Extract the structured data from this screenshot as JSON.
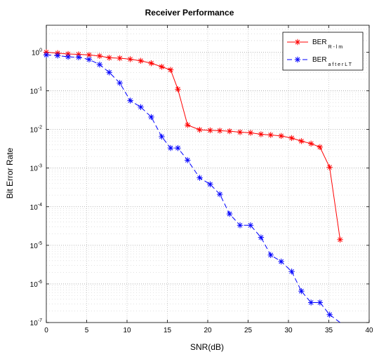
{
  "chart_data": {
    "type": "line",
    "title": "Receiver Performance",
    "xlabel": "SNR(dB)",
    "ylabel": "Bit Error Rate",
    "xlim": [
      0,
      40
    ],
    "ylim": [
      1e-07,
      5
    ],
    "yscale": "log",
    "grid": true,
    "legend_position": "top-right",
    "x_ticks": [
      0,
      5,
      10,
      15,
      20,
      25,
      30,
      35,
      40
    ],
    "y_ticks": [
      {
        "value": 1.0,
        "base": "10",
        "exp": "0"
      },
      {
        "value": 0.1,
        "base": "10",
        "exp": "-1"
      },
      {
        "value": 0.01,
        "base": "10",
        "exp": "-2"
      },
      {
        "value": 0.001,
        "base": "10",
        "exp": "-3"
      },
      {
        "value": 0.0001,
        "base": "10",
        "exp": "-4"
      },
      {
        "value": 1e-05,
        "base": "10",
        "exp": "-5"
      },
      {
        "value": 1e-06,
        "base": "10",
        "exp": "-6"
      },
      {
        "value": 1e-07,
        "base": "10",
        "exp": "-7"
      }
    ],
    "series": [
      {
        "name": "BER",
        "name_sub": "R - l m",
        "color": "#ff0000",
        "line_style": "solid",
        "marker": "asterisk",
        "x": [
          0,
          1.4,
          2.7,
          4.0,
          5.3,
          6.6,
          7.8,
          9.1,
          10.4,
          11.7,
          13.0,
          14.3,
          15.4,
          16.3,
          17.5,
          19.0,
          20.3,
          21.5,
          22.7,
          24.0,
          25.3,
          26.6,
          27.8,
          29.1,
          30.4,
          31.6,
          32.8,
          33.9,
          35.1,
          36.4
        ],
        "y": [
          1.0,
          0.95,
          0.9,
          0.88,
          0.85,
          0.8,
          0.72,
          0.7,
          0.66,
          0.6,
          0.52,
          0.42,
          0.35,
          0.11,
          0.013,
          0.0098,
          0.0095,
          0.0093,
          0.009,
          0.0085,
          0.0082,
          0.0075,
          0.0072,
          0.0068,
          0.006,
          0.005,
          0.0043,
          0.0035,
          0.00105,
          1.4e-05
        ]
      },
      {
        "name": "BER",
        "name_sub": "a f t e r  L T",
        "color": "#0000ff",
        "line_style": "dashed",
        "marker": "asterisk",
        "x": [
          0,
          1.4,
          2.7,
          4.0,
          5.3,
          6.6,
          7.8,
          9.1,
          10.4,
          11.7,
          13.0,
          14.3,
          15.4,
          16.3,
          17.5,
          19.0,
          20.3,
          21.5,
          22.7,
          24.0,
          25.3,
          26.6,
          27.8,
          29.1,
          30.4,
          31.6,
          32.8,
          33.9,
          35.1,
          36.4
        ],
        "y": [
          0.85,
          0.82,
          0.76,
          0.74,
          0.65,
          0.48,
          0.3,
          0.16,
          0.056,
          0.038,
          0.021,
          0.0065,
          0.0033,
          0.0033,
          0.0016,
          0.00056,
          0.00038,
          0.00021,
          6.5e-05,
          3.3e-05,
          3.3e-05,
          1.6e-05,
          5.6e-06,
          3.8e-06,
          2.1e-06,
          6.5e-07,
          3.3e-07,
          3.3e-07,
          1.6e-07,
          1e-07
        ]
      }
    ]
  }
}
